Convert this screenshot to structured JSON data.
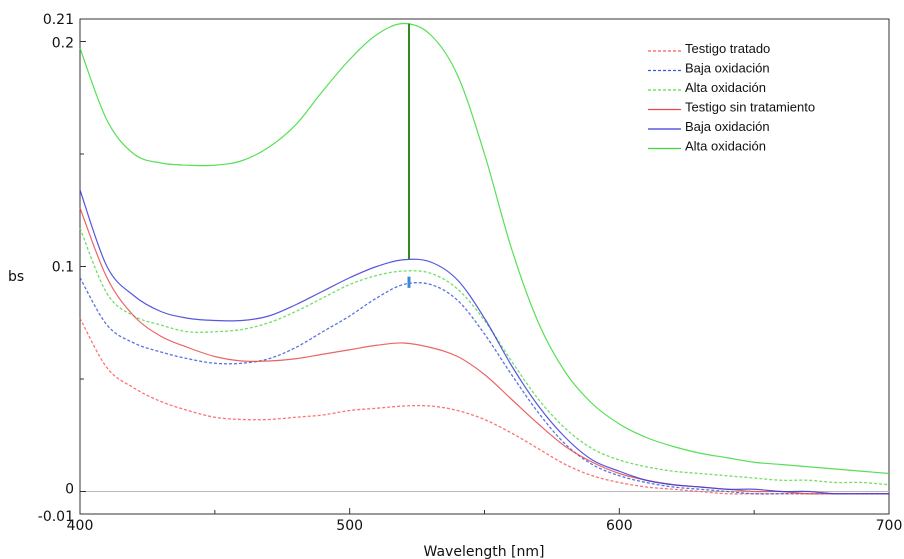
{
  "chart_data": {
    "type": "line",
    "title": "",
    "xlabel": "Wavelength [nm]",
    "ylabel": "bs",
    "xlim": [
      400,
      700
    ],
    "ylim": [
      -0.01,
      0.21
    ],
    "x_ticks": [
      400,
      500,
      600,
      700
    ],
    "y_ticks": [
      -0.01,
      0,
      0.1,
      0.2,
      0.21
    ],
    "x_tick_labels": [
      "400",
      "500",
      "600",
      "700"
    ],
    "y_tick_labels": [
      "-0.01",
      "0",
      "0.1",
      "0.2",
      "0.21"
    ],
    "legend_position": "top-right",
    "grid": false,
    "x": [
      400,
      410,
      420,
      430,
      440,
      450,
      460,
      470,
      480,
      490,
      500,
      510,
      520,
      530,
      540,
      550,
      560,
      570,
      580,
      590,
      600,
      610,
      620,
      630,
      640,
      650,
      660,
      670,
      680,
      690,
      700
    ],
    "series": [
      {
        "name": "Testigo tratado",
        "color": "#ff5a5a",
        "dash": true,
        "values": [
          0.077,
          0.055,
          0.046,
          0.04,
          0.036,
          0.033,
          0.032,
          0.032,
          0.033,
          0.034,
          0.036,
          0.037,
          0.038,
          0.038,
          0.036,
          0.032,
          0.026,
          0.019,
          0.012,
          0.007,
          0.004,
          0.002,
          0.001,
          0.0,
          -0.001,
          -0.001,
          -0.001,
          -0.001,
          -0.001,
          -0.001,
          -0.001
        ]
      },
      {
        "name": "Baja oxidación",
        "color": "#3a5bd9",
        "dash": true,
        "values": [
          0.095,
          0.074,
          0.066,
          0.062,
          0.059,
          0.057,
          0.057,
          0.059,
          0.064,
          0.071,
          0.078,
          0.086,
          0.092,
          0.092,
          0.085,
          0.07,
          0.052,
          0.035,
          0.021,
          0.012,
          0.007,
          0.004,
          0.002,
          0.001,
          0.0,
          -0.001,
          -0.001,
          -0.001,
          -0.001,
          -0.001,
          -0.001
        ]
      },
      {
        "name": "Alta oxidación",
        "color": "#5ad94a",
        "dash": true,
        "values": [
          0.117,
          0.088,
          0.078,
          0.074,
          0.071,
          0.071,
          0.072,
          0.075,
          0.08,
          0.086,
          0.092,
          0.096,
          0.098,
          0.097,
          0.09,
          0.076,
          0.058,
          0.041,
          0.028,
          0.019,
          0.014,
          0.011,
          0.009,
          0.008,
          0.007,
          0.006,
          0.005,
          0.005,
          0.004,
          0.004,
          0.003
        ]
      },
      {
        "name": "Testigo sin tratamiento",
        "color": "#e84a4a",
        "dash": false,
        "values": [
          0.126,
          0.095,
          0.078,
          0.069,
          0.064,
          0.06,
          0.058,
          0.058,
          0.059,
          0.061,
          0.063,
          0.065,
          0.066,
          0.064,
          0.06,
          0.052,
          0.041,
          0.03,
          0.02,
          0.013,
          0.008,
          0.005,
          0.003,
          0.002,
          0.001,
          0.0,
          0.0,
          -0.001,
          -0.001,
          -0.001,
          -0.001
        ]
      },
      {
        "name": "Baja oxidación",
        "color": "#3a3ad9",
        "dash": false,
        "values": [
          0.134,
          0.1,
          0.087,
          0.08,
          0.077,
          0.076,
          0.076,
          0.078,
          0.083,
          0.089,
          0.095,
          0.1,
          0.103,
          0.102,
          0.094,
          0.077,
          0.056,
          0.038,
          0.024,
          0.014,
          0.009,
          0.005,
          0.003,
          0.002,
          0.001,
          0.001,
          0.0,
          0.0,
          -0.001,
          -0.001,
          -0.001
        ]
      },
      {
        "name": "Alta oxidación",
        "color": "#3ad93a",
        "dash": false,
        "values": [
          0.197,
          0.165,
          0.15,
          0.146,
          0.145,
          0.145,
          0.147,
          0.153,
          0.163,
          0.178,
          0.192,
          0.203,
          0.208,
          0.203,
          0.185,
          0.15,
          0.108,
          0.075,
          0.053,
          0.039,
          0.03,
          0.024,
          0.02,
          0.017,
          0.015,
          0.013,
          0.012,
          0.011,
          0.01,
          0.009,
          0.008
        ]
      }
    ],
    "annotations": [
      {
        "type": "vertical-bar",
        "x": 522,
        "y_from": 0.103,
        "y_to": 0.208,
        "color": "#2f8a1f"
      },
      {
        "type": "vertical-bar",
        "x": 522,
        "y_from": 0.0905,
        "y_to": 0.0955,
        "color": "#3a8ad9"
      }
    ]
  }
}
